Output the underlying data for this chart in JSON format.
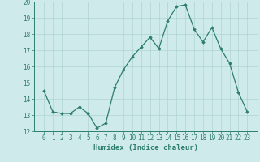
{
  "x": [
    0,
    1,
    2,
    3,
    4,
    5,
    6,
    7,
    8,
    9,
    10,
    11,
    12,
    13,
    14,
    15,
    16,
    17,
    18,
    19,
    20,
    21,
    22,
    23
  ],
  "y": [
    14.5,
    13.2,
    13.1,
    13.1,
    13.5,
    13.1,
    12.2,
    12.5,
    14.7,
    15.8,
    16.6,
    17.2,
    17.8,
    17.1,
    18.8,
    19.7,
    19.8,
    18.3,
    17.5,
    18.4,
    17.1,
    16.2,
    14.4,
    13.2
  ],
  "line_color": "#2d7d6e",
  "marker": "D",
  "marker_size": 1.8,
  "line_width": 0.9,
  "bg_color": "#ceeaea",
  "grid_color": "#afd4d4",
  "xlabel": "Humidex (Indice chaleur)",
  "xlabel_fontsize": 6.5,
  "ylim": [
    12,
    20
  ],
  "yticks": [
    12,
    13,
    14,
    15,
    16,
    17,
    18,
    19,
    20
  ],
  "xticks": [
    0,
    1,
    2,
    3,
    4,
    5,
    6,
    7,
    8,
    9,
    10,
    11,
    12,
    13,
    14,
    15,
    16,
    17,
    18,
    19,
    20,
    21,
    22,
    23
  ],
  "tick_fontsize": 5.5,
  "spine_color": "#2d7d6e",
  "label_color": "#2d7d6e"
}
